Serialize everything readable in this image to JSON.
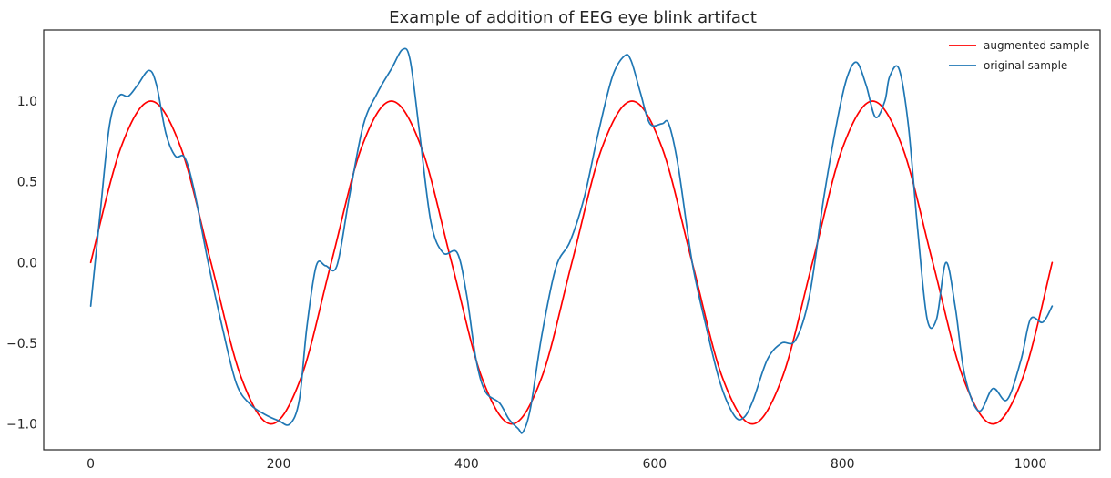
{
  "chart_data": {
    "type": "line",
    "title": "Example of addition of EEG eye blink artifact",
    "xlabel": "",
    "ylabel": "",
    "xlim": [
      -50,
      1074
    ],
    "ylim": [
      -1.16,
      1.44
    ],
    "xticks": [
      0,
      200,
      400,
      600,
      800,
      1000
    ],
    "yticks": [
      1.0,
      0.5,
      0.0,
      -0.5,
      -1.0
    ],
    "xtick_labels": [
      "0",
      "200",
      "400",
      "600",
      "800",
      "1000"
    ],
    "ytick_labels": [
      "1.0",
      "0.5",
      "0.0",
      "−0.5",
      "−1.0"
    ],
    "grid": false,
    "legend_position": "top-right",
    "series": [
      {
        "name": "augmented sample",
        "color": "#ff0000",
        "x": [
          0,
          32,
          64,
          96,
          128,
          160,
          192,
          224,
          256,
          288,
          320,
          352,
          384,
          416,
          448,
          480,
          512,
          544,
          576,
          608,
          640,
          672,
          704,
          736,
          768,
          800,
          832,
          864,
          896,
          928,
          960,
          992,
          1023
        ],
        "y": [
          0.0,
          0.71,
          1.0,
          0.71,
          0.0,
          -0.71,
          -1.0,
          -0.71,
          0.0,
          0.71,
          1.0,
          0.71,
          0.0,
          -0.71,
          -1.0,
          -0.71,
          0.0,
          0.71,
          1.0,
          0.71,
          0.0,
          -0.71,
          -1.0,
          -0.71,
          0.0,
          0.71,
          1.0,
          0.71,
          0.0,
          -0.71,
          -1.0,
          -0.71,
          0.0
        ]
      },
      {
        "name": "original sample",
        "color": "#1f77b4",
        "x": [
          0,
          10,
          20,
          30,
          40,
          50,
          62,
          70,
          80,
          90,
          100,
          110,
          125,
          140,
          155,
          170,
          185,
          200,
          212,
          222,
          230,
          240,
          250,
          262,
          275,
          290,
          305,
          320,
          332,
          340,
          350,
          362,
          375,
          390,
          400,
          410,
          420,
          435,
          445,
          455,
          460,
          468,
          480,
          495,
          510,
          525,
          540,
          555,
          568,
          575,
          585,
          595,
          608,
          615,
          625,
          640,
          655,
          670,
          685,
          695,
          705,
          720,
          735,
          750,
          765,
          780,
          795,
          805,
          815,
          825,
          835,
          845,
          850,
          860,
          870,
          880,
          890,
          900,
          910,
          920,
          930,
          945,
          960,
          975,
          990,
          1000,
          1013,
          1023
        ],
        "y": [
          -0.27,
          0.3,
          0.85,
          1.03,
          1.03,
          1.1,
          1.19,
          1.1,
          0.8,
          0.66,
          0.65,
          0.45,
          0.0,
          -0.4,
          -0.75,
          -0.88,
          -0.94,
          -0.98,
          -1.0,
          -0.85,
          -0.4,
          -0.02,
          -0.02,
          -0.02,
          0.4,
          0.85,
          1.05,
          1.2,
          1.32,
          1.25,
          0.8,
          0.25,
          0.06,
          0.06,
          -0.2,
          -0.6,
          -0.8,
          -0.87,
          -0.97,
          -1.03,
          -1.05,
          -0.9,
          -0.45,
          -0.03,
          0.13,
          0.4,
          0.8,
          1.15,
          1.28,
          1.25,
          1.05,
          0.86,
          0.86,
          0.86,
          0.6,
          0.0,
          -0.4,
          -0.75,
          -0.95,
          -0.96,
          -0.85,
          -0.6,
          -0.5,
          -0.48,
          -0.2,
          0.4,
          0.9,
          1.15,
          1.24,
          1.1,
          0.9,
          1.0,
          1.15,
          1.2,
          0.85,
          0.2,
          -0.35,
          -0.35,
          0.0,
          -0.28,
          -0.7,
          -0.92,
          -0.78,
          -0.85,
          -0.6,
          -0.35,
          -0.37,
          -0.27
        ]
      }
    ]
  }
}
